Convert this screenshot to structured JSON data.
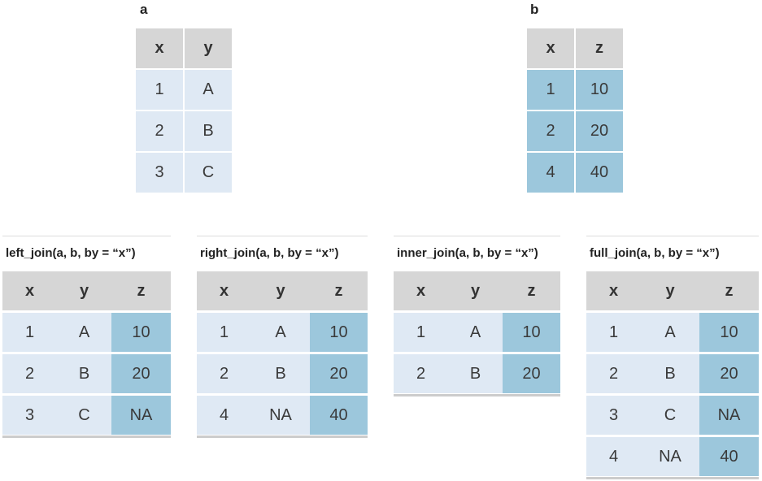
{
  "table_a": {
    "label": "a",
    "headers": [
      "x",
      "y"
    ],
    "rows": [
      [
        "1",
        "A"
      ],
      [
        "2",
        "B"
      ],
      [
        "3",
        "C"
      ]
    ]
  },
  "table_b": {
    "label": "b",
    "headers": [
      "x",
      "z"
    ],
    "rows": [
      [
        "1",
        "10"
      ],
      [
        "2",
        "20"
      ],
      [
        "4",
        "40"
      ]
    ]
  },
  "joins": [
    {
      "title": "left_join(a, b, by = “x”)",
      "headers": [
        "x",
        "y",
        "z"
      ],
      "rows": [
        [
          "1",
          "A",
          "10"
        ],
        [
          "2",
          "B",
          "20"
        ],
        [
          "3",
          "C",
          "NA"
        ]
      ]
    },
    {
      "title": "right_join(a, b, by = “x”)",
      "headers": [
        "x",
        "y",
        "z"
      ],
      "rows": [
        [
          "1",
          "A",
          "10"
        ],
        [
          "2",
          "B",
          "20"
        ],
        [
          "4",
          "NA",
          "40"
        ]
      ]
    },
    {
      "title": "inner_join(a, b, by = “x”)",
      "headers": [
        "x",
        "y",
        "z"
      ],
      "rows": [
        [
          "1",
          "A",
          "10"
        ],
        [
          "2",
          "B",
          "20"
        ]
      ]
    },
    {
      "title": "full_join(a, b, by = “x”)",
      "headers": [
        "x",
        "y",
        "z"
      ],
      "rows": [
        [
          "1",
          "A",
          "10"
        ],
        [
          "2",
          "B",
          "20"
        ],
        [
          "3",
          "C",
          "NA"
        ],
        [
          "4",
          "NA",
          "40"
        ]
      ]
    }
  ],
  "colors": {
    "header_gray": "#d6d6d6",
    "a_side_light_blue": "#dfe9f4",
    "b_side_blue": "#9cc7dc"
  }
}
